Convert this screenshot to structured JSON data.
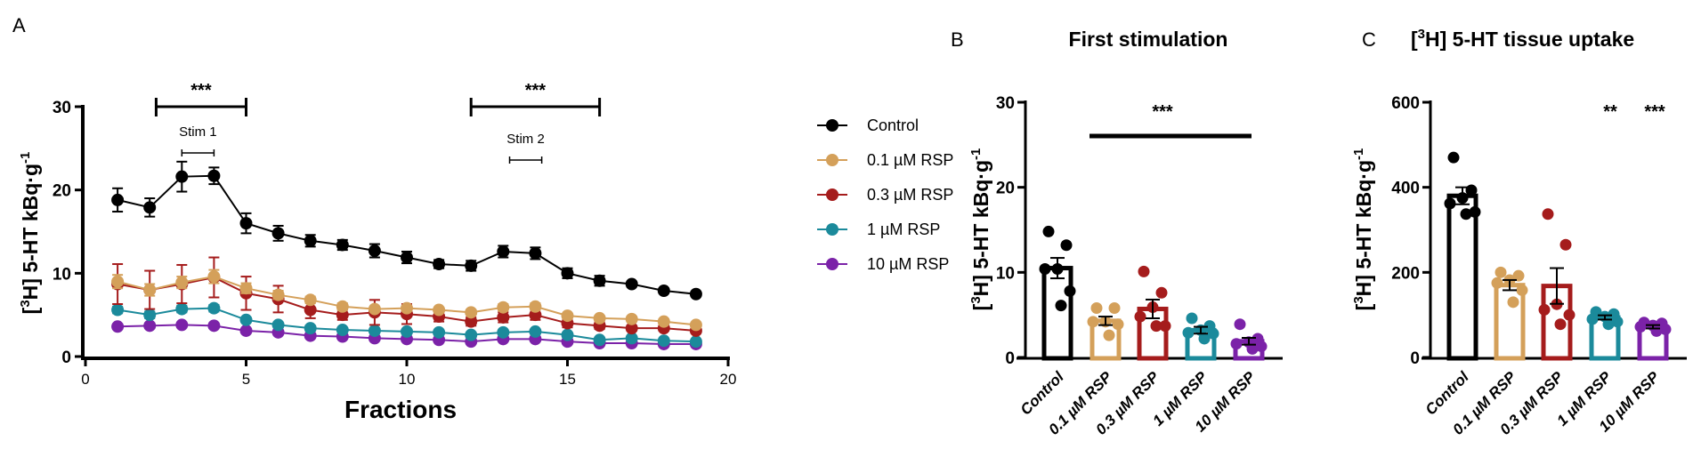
{
  "colors": {
    "Control": "#000000",
    "0.1 µM RSP": "#d4a05a",
    "0.3 µM RSP": "#a51c1c",
    "1 µM RSP": "#1b8a9b",
    "10 µM RSP": "#7b22a8"
  },
  "ylabel_parts": {
    "open": "[",
    "sup": "3",
    "mid": "H] 5-HT kBq·g",
    "sup2": "-1"
  },
  "chart_data": [
    {
      "panel": "A",
      "type": "line",
      "title": "",
      "xlabel": "Fractions",
      "ylabel": "[3H] 5-HT kBq·g-1",
      "xlim": [
        0,
        20
      ],
      "ylim": [
        0,
        30
      ],
      "xticks": [
        0,
        5,
        10,
        15,
        20
      ],
      "yticks": [
        0,
        10,
        20,
        30
      ],
      "x": [
        1,
        2,
        3,
        4,
        5,
        6,
        7,
        8,
        9,
        10,
        11,
        12,
        13,
        14,
        15,
        16,
        17,
        18,
        19
      ],
      "legend_position": "right",
      "series": [
        {
          "name": "Control",
          "values": [
            18.8,
            17.9,
            21.6,
            21.7,
            16.0,
            14.8,
            13.9,
            13.4,
            12.7,
            11.9,
            11.1,
            10.9,
            12.6,
            12.4,
            10.0,
            9.1,
            8.7,
            7.9,
            7.5
          ],
          "sem": [
            1.4,
            1.1,
            1.8,
            1.0,
            1.2,
            0.9,
            0.7,
            0.6,
            0.8,
            0.7,
            0.5,
            0.6,
            0.7,
            0.7,
            0.6,
            0.6,
            0.3,
            0.3,
            0.3
          ]
        },
        {
          "name": "0.1 µM RSP",
          "values": [
            9.0,
            8.0,
            8.9,
            9.6,
            8.2,
            7.4,
            6.8,
            6.0,
            5.7,
            5.8,
            5.6,
            5.3,
            5.9,
            6.0,
            4.9,
            4.6,
            4.5,
            4.2,
            3.8
          ],
          "sem": [
            0.8,
            0.7,
            0.7,
            0.8,
            0.6,
            0.5,
            0.4,
            0.4,
            0.3,
            0.3,
            0.3,
            0.3,
            0.4,
            0.4,
            0.3,
            0.3,
            0.3,
            0.3,
            0.3
          ]
        },
        {
          "name": "0.3 µM RSP",
          "values": [
            8.7,
            8.0,
            8.7,
            9.5,
            7.6,
            6.9,
            5.6,
            5.0,
            5.3,
            5.1,
            4.8,
            4.2,
            4.7,
            5.0,
            4.0,
            3.7,
            3.4,
            3.4,
            3.1
          ],
          "sem": [
            2.4,
            2.3,
            2.3,
            2.4,
            2.0,
            1.6,
            1.0,
            0.6,
            1.5,
            1.2,
            0.6,
            0.5,
            0.6,
            0.6,
            0.5,
            0.4,
            0.3,
            0.3,
            0.3
          ]
        },
        {
          "name": "1 µM RSP",
          "values": [
            5.6,
            5.0,
            5.7,
            5.8,
            4.4,
            3.8,
            3.4,
            3.2,
            3.1,
            3.0,
            2.9,
            2.6,
            2.9,
            3.0,
            2.6,
            2.0,
            2.2,
            1.9,
            1.8
          ],
          "sem": [
            0.4,
            0.4,
            0.4,
            0.4,
            0.3,
            0.3,
            0.3,
            0.2,
            0.2,
            0.2,
            0.2,
            0.2,
            0.2,
            0.2,
            0.2,
            0.2,
            0.2,
            0.2,
            0.2
          ]
        },
        {
          "name": "10 µM RSP",
          "values": [
            3.6,
            3.7,
            3.8,
            3.7,
            3.1,
            2.9,
            2.5,
            2.4,
            2.2,
            2.1,
            2.0,
            1.8,
            2.1,
            2.1,
            1.8,
            1.6,
            1.6,
            1.5,
            1.5
          ],
          "sem": [
            0.3,
            0.3,
            0.3,
            0.3,
            0.2,
            0.2,
            0.2,
            0.2,
            0.2,
            0.2,
            0.2,
            0.2,
            0.2,
            0.2,
            0.2,
            0.2,
            0.2,
            0.2,
            0.2
          ]
        }
      ],
      "annotations": [
        {
          "text": "***",
          "x_range": [
            2.2,
            5.0
          ]
        },
        {
          "text": "***",
          "x_range": [
            12.0,
            16.0
          ]
        },
        {
          "text": "Stim 1",
          "x_range": [
            3.0,
            4.0
          ]
        },
        {
          "text": "Stim 2",
          "x_range": [
            13.2,
            14.2
          ]
        }
      ]
    },
    {
      "panel": "B",
      "type": "bar",
      "title": "First stimulation",
      "ylabel": "[3H] 5-HT kBq·g-1",
      "ylim": [
        0,
        30
      ],
      "yticks": [
        0,
        10,
        20,
        30
      ],
      "categories": [
        "Control",
        "0.1 µM RSP",
        "0.3 µM RSP",
        "1 µM RSP",
        "10 µM RSP"
      ],
      "values": [
        10.5,
        4.3,
        5.7,
        3.2,
        1.9
      ],
      "sem": [
        1.2,
        0.5,
        1.1,
        0.4,
        0.4
      ],
      "points": [
        [
          14.8,
          13.2,
          10.4,
          10.4,
          7.8,
          6.1
        ],
        [
          5.8,
          5.8,
          4.2,
          4.2,
          3.9,
          2.6
        ],
        [
          10.1,
          7.6,
          5.9,
          4.8,
          3.7,
          3.7
        ],
        [
          4.6,
          3.7,
          3.2,
          2.9,
          2.8,
          2.2
        ],
        [
          3.9,
          2.2,
          1.8,
          1.6,
          1.3,
          1.0
        ]
      ],
      "annotations": [
        {
          "text": "***",
          "spans": [
            "0.1 µM RSP",
            "10 µM RSP"
          ]
        }
      ]
    },
    {
      "panel": "C",
      "type": "bar",
      "title": "[3H] 5-HT tissue uptake",
      "ylabel": "[3H] 5-HT kBq·g-1",
      "ylim": [
        0,
        600
      ],
      "yticks": [
        0,
        200,
        400,
        600
      ],
      "categories": [
        "Control",
        "0.1 µM RSP",
        "0.3 µM RSP",
        "1 µM RSP",
        "10 µM RSP"
      ],
      "values": [
        380,
        170,
        168,
        94,
        72
      ],
      "sem": [
        20,
        12,
        42,
        5,
        4
      ],
      "points": [
        [
          470,
          393,
          375,
          362,
          342,
          337
        ],
        [
          200,
          192,
          182,
          175,
          158,
          130
        ],
        [
          337,
          265,
          125,
          112,
          100,
          78
        ],
        [
          107,
          102,
          96,
          90,
          84,
          78
        ],
        [
          82,
          80,
          75,
          72,
          66,
          62
        ]
      ],
      "annotations": [
        {
          "text": "**",
          "over": "1 µM RSP"
        },
        {
          "text": "***",
          "over": "10 µM RSP"
        }
      ]
    }
  ]
}
